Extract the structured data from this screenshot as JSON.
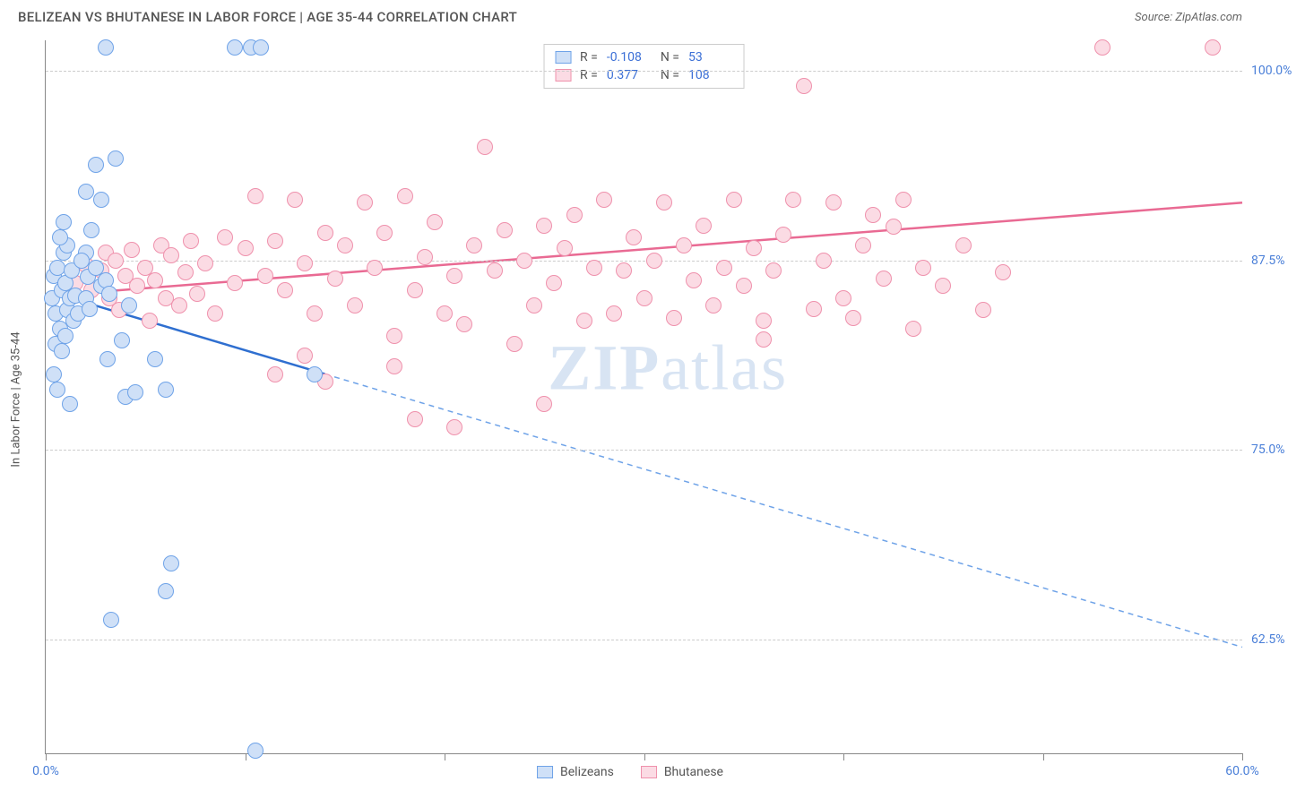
{
  "header": {
    "title": "BELIZEAN VS BHUTANESE IN LABOR FORCE | AGE 35-44 CORRELATION CHART",
    "source": "Source: ZipAtlas.com"
  },
  "ylabel": "In Labor Force | Age 35-44",
  "watermark": {
    "bold": "ZIP",
    "rest": "atlas"
  },
  "chart": {
    "type": "scatter",
    "xlim": [
      0,
      60
    ],
    "ylim": [
      55,
      102
    ],
    "xticks": [
      0,
      10,
      20,
      30,
      40,
      50,
      60
    ],
    "xtick_labels": {
      "0": "0.0%",
      "60": "60.0%"
    },
    "yticks": [
      62.5,
      75.0,
      87.5,
      100.0
    ],
    "ytick_labels": [
      "62.5%",
      "75.0%",
      "87.5%",
      "100.0%"
    ],
    "grid_color": "#cccccc",
    "background_color": "#ffffff",
    "axis_color": "#888888",
    "tick_label_color": "#4a7fd8",
    "marker_radius": 9,
    "marker_stroke_width": 1.5,
    "series": [
      {
        "name": "Belizeans",
        "fill": "#cfe0f7",
        "stroke": "#6fa3e8",
        "line_color": "#2f6fd0",
        "line_width": 2.5,
        "dash_color": "#6fa3e8",
        "R": "-0.108",
        "N": "53",
        "trend": {
          "x1": 0.5,
          "y1": 85.3,
          "x2": 14,
          "y2": 80.0,
          "x_dash_end": 60,
          "y_dash_end": 62.0
        },
        "points": [
          [
            0.3,
            85
          ],
          [
            0.4,
            86.5
          ],
          [
            0.5,
            84
          ],
          [
            0.6,
            87
          ],
          [
            0.7,
            83
          ],
          [
            0.8,
            85.5
          ],
          [
            0.9,
            88
          ],
          [
            0.5,
            82
          ],
          [
            1.0,
            86
          ],
          [
            1.1,
            84.2
          ],
          [
            0.4,
            80
          ],
          [
            0.6,
            79
          ],
          [
            0.8,
            81.5
          ],
          [
            1.2,
            85
          ],
          [
            1.3,
            86.8
          ],
          [
            1.4,
            83.5
          ],
          [
            1.1,
            88.5
          ],
          [
            1.5,
            85.2
          ],
          [
            1.6,
            84
          ],
          [
            1.0,
            82.5
          ],
          [
            0.7,
            89
          ],
          [
            0.9,
            90
          ],
          [
            2.0,
            85
          ],
          [
            2.1,
            86.4
          ],
          [
            2.0,
            88
          ],
          [
            2.3,
            89.5
          ],
          [
            2.2,
            84.3
          ],
          [
            2.5,
            87
          ],
          [
            2.8,
            85.8
          ],
          [
            3.0,
            86.2
          ],
          [
            1.8,
            87.5
          ],
          [
            3.2,
            85.3
          ],
          [
            2.0,
            92
          ],
          [
            2.5,
            93.8
          ],
          [
            3.5,
            94.2
          ],
          [
            2.8,
            91.5
          ],
          [
            3.1,
            81
          ],
          [
            4.0,
            78.5
          ],
          [
            4.5,
            78.8
          ],
          [
            4.2,
            84.5
          ],
          [
            3.8,
            82.2
          ],
          [
            5.5,
            81
          ],
          [
            6.0,
            79
          ],
          [
            6.3,
            67.5
          ],
          [
            6.0,
            65.7
          ],
          [
            3.3,
            63.8
          ],
          [
            10.3,
            101.5
          ],
          [
            10.8,
            101.5
          ],
          [
            10.5,
            55.2
          ],
          [
            13.5,
            80
          ],
          [
            9.5,
            101.5
          ],
          [
            3.0,
            101.5
          ],
          [
            1.2,
            78
          ]
        ]
      },
      {
        "name": "Bhutanese",
        "fill": "#fbdbe4",
        "stroke": "#ef91ac",
        "line_color": "#e96a93",
        "line_width": 2.5,
        "R": "0.377",
        "N": "108",
        "trend": {
          "x1": 0.5,
          "y1": 85.2,
          "x2": 60,
          "y2": 91.3
        },
        "points": [
          [
            1.5,
            86
          ],
          [
            2.0,
            87.2
          ],
          [
            2.3,
            85.5
          ],
          [
            2.8,
            86.8
          ],
          [
            3.0,
            88
          ],
          [
            3.2,
            85
          ],
          [
            3.5,
            87.5
          ],
          [
            3.7,
            84.2
          ],
          [
            4.0,
            86.5
          ],
          [
            4.3,
            88.2
          ],
          [
            4.6,
            85.8
          ],
          [
            5.0,
            87
          ],
          [
            5.2,
            83.5
          ],
          [
            5.5,
            86.2
          ],
          [
            5.8,
            88.5
          ],
          [
            6.0,
            85
          ],
          [
            6.3,
            87.8
          ],
          [
            6.7,
            84.5
          ],
          [
            7.0,
            86.7
          ],
          [
            7.3,
            88.8
          ],
          [
            7.6,
            85.3
          ],
          [
            8.0,
            87.3
          ],
          [
            8.5,
            84
          ],
          [
            9.0,
            89
          ],
          [
            9.5,
            86
          ],
          [
            10.0,
            88.3
          ],
          [
            10.5,
            91.7
          ],
          [
            11.0,
            86.5
          ],
          [
            11.5,
            88.8
          ],
          [
            12.0,
            85.5
          ],
          [
            12.5,
            91.5
          ],
          [
            13.0,
            87.3
          ],
          [
            13.5,
            84
          ],
          [
            14.0,
            89.3
          ],
          [
            14.5,
            86.3
          ],
          [
            15.0,
            88.5
          ],
          [
            15.5,
            84.5
          ],
          [
            16.0,
            91.3
          ],
          [
            16.5,
            87
          ],
          [
            17.0,
            89.3
          ],
          [
            17.5,
            82.5
          ],
          [
            18.0,
            91.7
          ],
          [
            18.5,
            85.5
          ],
          [
            19.0,
            87.7
          ],
          [
            19.5,
            90
          ],
          [
            20.0,
            84
          ],
          [
            20.5,
            86.5
          ],
          [
            21.0,
            83.3
          ],
          [
            21.5,
            88.5
          ],
          [
            22.0,
            95
          ],
          [
            22.5,
            86.8
          ],
          [
            23.0,
            89.5
          ],
          [
            23.5,
            82
          ],
          [
            24.0,
            87.5
          ],
          [
            24.5,
            84.5
          ],
          [
            25.0,
            89.8
          ],
          [
            25.5,
            86
          ],
          [
            26.0,
            88.3
          ],
          [
            26.5,
            90.5
          ],
          [
            27.0,
            83.5
          ],
          [
            27.5,
            87
          ],
          [
            28.0,
            91.5
          ],
          [
            28.5,
            84
          ],
          [
            29.0,
            86.8
          ],
          [
            29.5,
            89
          ],
          [
            30.0,
            85
          ],
          [
            30.5,
            87.5
          ],
          [
            31.0,
            91.3
          ],
          [
            31.5,
            83.7
          ],
          [
            32.0,
            88.5
          ],
          [
            32.5,
            86.2
          ],
          [
            33.0,
            89.8
          ],
          [
            33.5,
            84.5
          ],
          [
            34.0,
            87
          ],
          [
            34.5,
            91.5
          ],
          [
            35.0,
            85.8
          ],
          [
            35.5,
            88.3
          ],
          [
            36.0,
            83.5
          ],
          [
            36.5,
            86.8
          ],
          [
            37.0,
            89.2
          ],
          [
            37.5,
            91.5
          ],
          [
            38.0,
            99
          ],
          [
            38.5,
            84.3
          ],
          [
            39.0,
            87.5
          ],
          [
            39.5,
            91.3
          ],
          [
            40.0,
            85
          ],
          [
            40.5,
            83.7
          ],
          [
            41.0,
            88.5
          ],
          [
            42.0,
            86.3
          ],
          [
            42.5,
            89.7
          ],
          [
            43.0,
            91.5
          ],
          [
            43.5,
            83
          ],
          [
            44.0,
            87
          ],
          [
            45.0,
            85.8
          ],
          [
            46.0,
            88.5
          ],
          [
            47.0,
            84.2
          ],
          [
            48.0,
            86.7
          ],
          [
            20.5,
            76.5
          ],
          [
            25.0,
            78
          ],
          [
            17.5,
            80.5
          ],
          [
            18.5,
            77
          ],
          [
            14.0,
            79.5
          ],
          [
            13.0,
            81.2
          ],
          [
            11.5,
            80
          ],
          [
            53.0,
            101.5
          ],
          [
            58.5,
            101.5
          ],
          [
            36.0,
            82.3
          ],
          [
            41.5,
            90.5
          ]
        ]
      }
    ]
  },
  "legend_bottom": [
    {
      "label": "Belizeans",
      "fill": "#cfe0f7",
      "stroke": "#6fa3e8"
    },
    {
      "label": "Bhutanese",
      "fill": "#fbdbe4",
      "stroke": "#ef91ac"
    }
  ]
}
